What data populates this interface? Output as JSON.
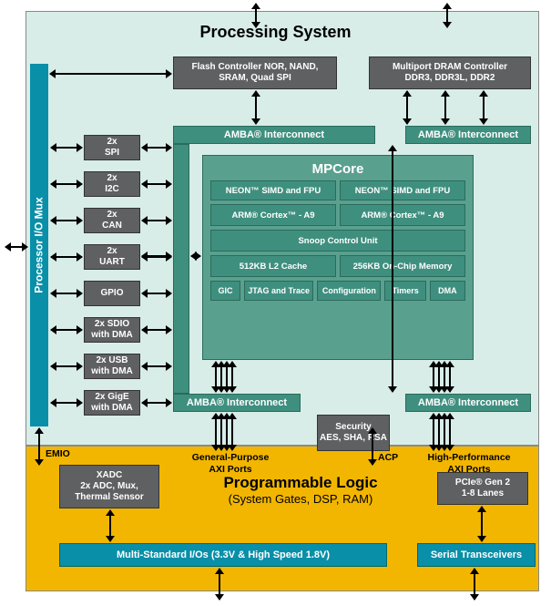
{
  "processing_system": {
    "title": "Processing System"
  },
  "programmable_logic": {
    "title": "Programmable Logic",
    "subtitle": "(System Gates, DSP, RAM)"
  },
  "io_mux": "Processor I/O Mux",
  "flash_ctrl": {
    "l1": "Flash Controller NOR, NAND,",
    "l2": "SRAM, Quad SPI"
  },
  "dram_ctrl": {
    "l1": "Multiport DRAM Controller",
    "l2": "DDR3, DDR3L, DDR2"
  },
  "amba": "AMBA® Interconnect",
  "peripherals": [
    {
      "l1": "2x",
      "l2": "SPI"
    },
    {
      "l1": "2x",
      "l2": "I2C"
    },
    {
      "l1": "2x",
      "l2": "CAN"
    },
    {
      "l1": "2x",
      "l2": "UART"
    },
    {
      "l1": "",
      "l2": "GPIO"
    },
    {
      "l1": "2x SDIO",
      "l2": "with DMA"
    },
    {
      "l1": "2x USB",
      "l2": "with DMA"
    },
    {
      "l1": "2x GigE",
      "l2": "with DMA"
    }
  ],
  "mpcore": {
    "title": "MPCore",
    "neon": "NEON™ SIMD and FPU",
    "a9": "ARM® Cortex™ - A9",
    "scu": "Snoop Control Unit",
    "l2": "512KB L2 Cache",
    "ocm": "256KB On-Chip Memory",
    "gic": "GIC",
    "jtag": "JTAG and Trace",
    "cfg": "Configuration",
    "timers": "Timers",
    "dma": "DMA"
  },
  "security": {
    "l1": "Security",
    "l2": "AES, SHA, RSA"
  },
  "xadc": {
    "l1": "XADC",
    "l2": "2x ADC, Mux,",
    "l3": "Thermal Sensor"
  },
  "pcie": {
    "l1": "PCIe® Gen 2",
    "l2": "1-8 Lanes"
  },
  "msio": "Multi-Standard I/Os (3.3V & High Speed 1.8V)",
  "serial": "Serial Transceivers",
  "labels": {
    "emio": "EMIO",
    "gp": "General-Purpose\nAXI Ports",
    "acp": "ACP",
    "hp": "High-Performance\nAXI Ports"
  },
  "colors": {
    "ps_bg": "#d8ede8",
    "pl_bg": "#f2b600",
    "gray": "#5f6062",
    "teal": "#3f8f7f",
    "teal_light": "#5aa08f",
    "blue": "#0a8fa8"
  }
}
